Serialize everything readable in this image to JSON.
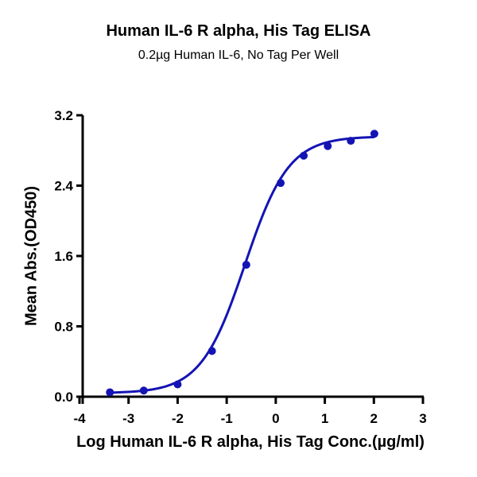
{
  "chart_data": {
    "type": "scatter",
    "title": "Human IL-6 R alpha, His Tag ELISA",
    "subtitle": "0.2µg Human IL-6, No Tag Per Well",
    "xlabel": "Log Human IL-6 R alpha, His Tag Conc.(µg/ml)",
    "ylabel": "Mean Abs.(OD450)",
    "xlim": [
      -4,
      3
    ],
    "ylim": [
      0,
      3.2
    ],
    "xticks": [
      -4,
      -3,
      -2,
      -1,
      0,
      1,
      2,
      3
    ],
    "yticks": [
      0.0,
      0.8,
      1.6,
      2.4,
      3.2
    ],
    "ytick_labels": [
      "0.0",
      "0.8",
      "1.6",
      "2.4",
      "3.2"
    ],
    "grid": false,
    "legend": null,
    "series": [
      {
        "name": "Mean Abs. (OD450)",
        "color": "#1414B4",
        "x": [
          -3.38,
          -2.69,
          -2.0,
          -1.3,
          -0.6,
          0.1,
          0.57,
          1.06,
          1.53,
          2.01
        ],
        "y": [
          0.05,
          0.07,
          0.14,
          0.52,
          1.5,
          2.43,
          2.74,
          2.85,
          2.91,
          2.99
        ]
      }
    ],
    "fit_curve": {
      "model": "4PL",
      "bottom": 0.04,
      "top": 2.96,
      "logEC50": -0.63,
      "hill_slope": 0.97,
      "x_range": [
        -3.38,
        2.01
      ],
      "color": "#1414B4"
    }
  }
}
